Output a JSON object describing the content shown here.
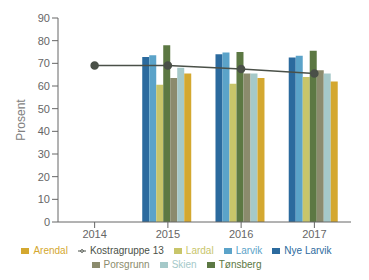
{
  "chart_data": {
    "type": "bar",
    "categories": [
      "2014",
      "2015",
      "2016",
      "2017"
    ],
    "ylabel": "Prosent",
    "ylim": [
      0,
      90
    ],
    "yticks": [
      0,
      10,
      20,
      30,
      40,
      50,
      60,
      70,
      80,
      90
    ],
    "grid": false,
    "legend": "bottom",
    "series": [
      {
        "name": "Nye Larvik",
        "color": "#2B6A9E",
        "values": [
          null,
          72.8,
          74.0,
          72.6
        ]
      },
      {
        "name": "Larvik",
        "color": "#5BA3C9",
        "values": [
          null,
          73.6,
          74.8,
          73.4
        ]
      },
      {
        "name": "Lardal",
        "color": "#C8C56A",
        "values": [
          null,
          60.6,
          61.0,
          64.0
        ]
      },
      {
        "name": "Tønsberg",
        "color": "#5C7843",
        "values": [
          null,
          78.0,
          75.0,
          75.5
        ]
      },
      {
        "name": "Porsgrunn",
        "color": "#8B8B6D",
        "values": [
          null,
          63.5,
          65.5,
          67.0
        ]
      },
      {
        "name": "Skien",
        "color": "#A5C9C9",
        "values": [
          null,
          68.0,
          65.5,
          65.5
        ]
      },
      {
        "name": "Arendal",
        "color": "#D4A830",
        "values": [
          null,
          65.5,
          63.5,
          62.0
        ]
      },
      {
        "name": "Kostragruppe 13",
        "type": "line",
        "color": "#4A5048",
        "marker": "circle",
        "values": [
          69.0,
          69.0,
          67.5,
          65.5
        ]
      }
    ]
  }
}
